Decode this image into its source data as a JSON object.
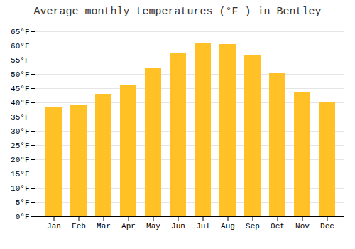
{
  "chart_data": {
    "type": "bar",
    "title": "Average monthly temperatures (°F ) in Bentley",
    "categories": [
      "Jan",
      "Feb",
      "Mar",
      "Apr",
      "May",
      "Jun",
      "Jul",
      "Aug",
      "Sep",
      "Oct",
      "Nov",
      "Dec"
    ],
    "values": [
      38.5,
      39.0,
      43.0,
      46.0,
      52.0,
      57.5,
      61.0,
      60.5,
      56.5,
      50.5,
      43.5,
      40.0
    ],
    "color": "#FFC125",
    "ylim": [
      0,
      65
    ],
    "yticks": [
      {
        "value": 0,
        "label": "0°F"
      },
      {
        "value": 5,
        "label": "5°F"
      },
      {
        "value": 10,
        "label": "10°F"
      },
      {
        "value": 15,
        "label": "15°F"
      },
      {
        "value": 20,
        "label": "20°F"
      },
      {
        "value": 25,
        "label": "25°F"
      },
      {
        "value": 30,
        "label": "30°F"
      },
      {
        "value": 35,
        "label": "35°F"
      },
      {
        "value": 40,
        "label": "40°F"
      },
      {
        "value": 45,
        "label": "45°F"
      },
      {
        "value": 50,
        "label": "50°F"
      },
      {
        "value": 55,
        "label": "55°F"
      },
      {
        "value": 60,
        "label": "60°F"
      },
      {
        "value": 65,
        "label": "65°F"
      }
    ],
    "grid": true
  }
}
